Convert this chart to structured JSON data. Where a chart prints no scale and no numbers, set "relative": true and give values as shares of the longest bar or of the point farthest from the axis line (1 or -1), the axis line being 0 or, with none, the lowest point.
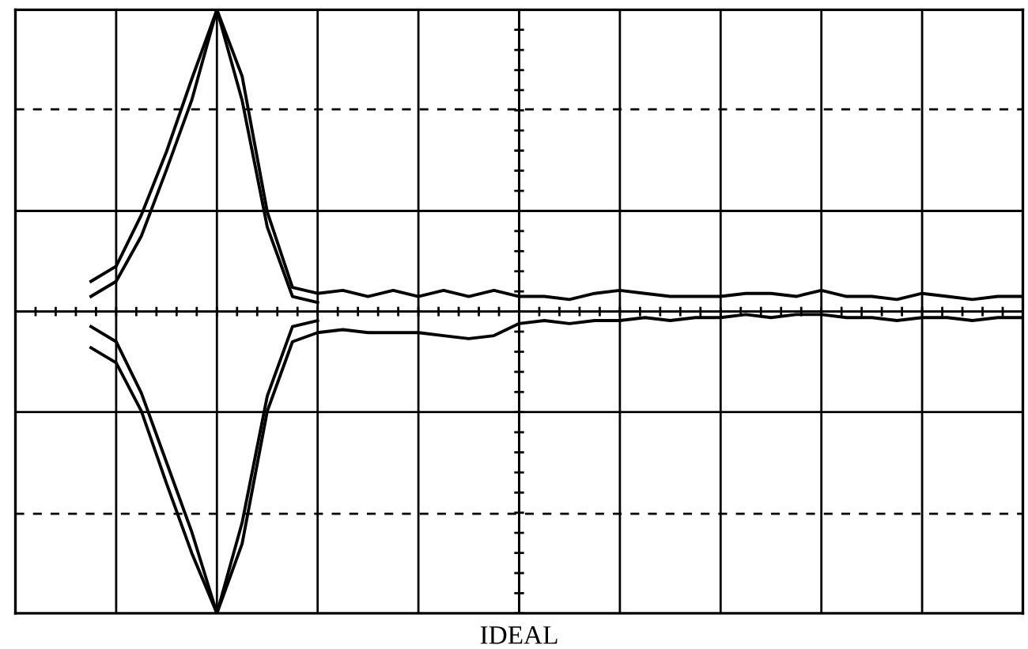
{
  "chart_data": {
    "type": "line",
    "relative": true,
    "xlabel": "IDEAL",
    "grid": true,
    "ref_lines": [
      {
        "axis": "y",
        "value": 0.67,
        "color": "#000000",
        "line_style": "dashed"
      },
      {
        "axis": "y",
        "value": -0.67,
        "color": "#000000",
        "line_style": "dashed"
      }
    ],
    "marker": "none",
    "line_style": "solid",
    "categories": [
      null,
      null,
      null,
      null,
      null,
      null,
      null,
      null,
      null,
      null,
      null,
      null,
      null,
      null,
      null,
      null,
      null,
      null,
      null,
      null,
      null,
      null,
      null,
      null,
      null,
      null,
      null,
      null,
      null,
      null,
      null,
      null,
      null,
      null,
      null,
      null,
      null,
      null,
      null,
      null,
      null
    ],
    "series": [
      {
        "color": "#000000",
        "values": [
          null,
          null,
          null,
          0.1,
          0.15,
          0.32,
          0.53,
          0.77,
          1,
          0.78,
          0.33,
          0.08,
          0.06,
          0.07,
          0.05,
          0.07,
          0.05,
          0.07,
          0.05,
          0.07,
          0.05,
          0.05,
          0.04,
          0.06,
          0.07,
          0.06,
          0.05,
          0.05,
          0.05,
          0.06,
          0.06,
          0.05,
          0.07,
          0.05,
          0.05,
          0.04,
          0.06,
          0.05,
          0.04,
          0.05,
          0.05
        ]
      },
      {
        "color": "#000000",
        "values": [
          null,
          null,
          null,
          0.05,
          0.1,
          0.25,
          0.47,
          0.7,
          1,
          0.7,
          0.28,
          0.05,
          0.03,
          null,
          null,
          null,
          null,
          null,
          null,
          null,
          null,
          null,
          null,
          null,
          null,
          null,
          null,
          null,
          null,
          null,
          null,
          null,
          null,
          null,
          null,
          null,
          null,
          null,
          null,
          null,
          null
        ]
      },
      {
        "color": "#000000",
        "values": [
          null,
          null,
          null,
          -0.12,
          -0.17,
          -0.33,
          -0.57,
          -0.8,
          -1,
          -0.77,
          -0.33,
          -0.1,
          -0.07,
          -0.06,
          -0.07,
          -0.07,
          -0.07,
          -0.08,
          -0.09,
          -0.08,
          -0.04,
          -0.03,
          -0.04,
          -0.03,
          -0.03,
          -0.02,
          -0.03,
          -0.02,
          -0.02,
          -0.01,
          -0.02,
          -0.01,
          -0.01,
          -0.02,
          -0.02,
          -0.03,
          -0.02,
          -0.02,
          -0.03,
          -0.02,
          -0.02
        ]
      },
      {
        "color": "#000000",
        "values": [
          null,
          null,
          null,
          -0.05,
          -0.1,
          -0.27,
          -0.5,
          -0.73,
          -1,
          -0.7,
          -0.28,
          -0.05,
          -0.03,
          null,
          null,
          null,
          null,
          null,
          null,
          null,
          null,
          null,
          null,
          null,
          null,
          null,
          null,
          null,
          null,
          null,
          null,
          null,
          null,
          null,
          null,
          null,
          null,
          null,
          null,
          null,
          null
        ]
      }
    ]
  }
}
